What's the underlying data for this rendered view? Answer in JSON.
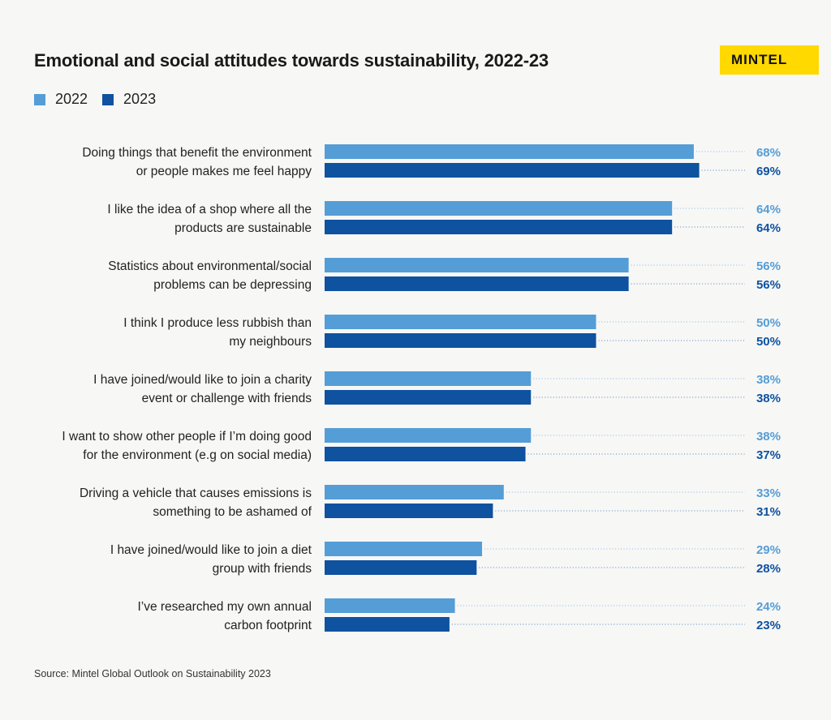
{
  "logo": "MINTEL",
  "source": "Source: Mintel Global Outlook on Sustainability 2023",
  "colors": {
    "2022": "#559dd6",
    "2023": "#0e52a0"
  },
  "chart_data": {
    "type": "bar",
    "orientation": "horizontal",
    "title": "Emotional and social attitudes towards sustainability, 2022-23",
    "xlim": [
      0,
      100
    ],
    "legend": "top-left",
    "categories": [
      [
        "Doing things that benefit the environment",
        "or people makes me feel happy"
      ],
      [
        "I like the idea of a shop where all the",
        "products are sustainable"
      ],
      [
        "Statistics about environmental/social",
        "problems can be depressing"
      ],
      [
        "I think I produce less rubbish than",
        "my neighbours"
      ],
      [
        "I have joined/would like to join a charity",
        "event or challenge with friends"
      ],
      [
        "I want to show other people if I’m doing good",
        "for the environment (e.g on social media)"
      ],
      [
        "Driving a vehicle that causes emissions is",
        "something to be ashamed of"
      ],
      [
        "I have joined/would like to join a diet",
        "group with friends"
      ],
      [
        "I’ve researched my own annual",
        "carbon footprint"
      ]
    ],
    "series": [
      {
        "name": "2022",
        "values": [
          68,
          64,
          56,
          50,
          38,
          38,
          33,
          29,
          24
        ]
      },
      {
        "name": "2023",
        "values": [
          69,
          64,
          56,
          50,
          38,
          37,
          31,
          28,
          23
        ]
      }
    ]
  }
}
